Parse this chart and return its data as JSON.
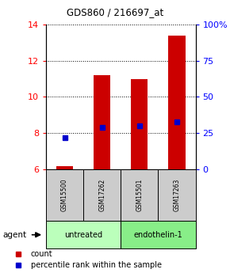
{
  "title": "GDS860 / 216697_at",
  "samples": [
    "GSM15500",
    "GSM17262",
    "GSM15501",
    "GSM17263"
  ],
  "bar_bottoms": [
    6.0,
    6.0,
    6.0,
    6.0
  ],
  "bar_tops": [
    6.15,
    11.2,
    11.0,
    13.4
  ],
  "percentile_values": [
    7.75,
    8.3,
    8.4,
    8.6
  ],
  "ylim_left": [
    6,
    14
  ],
  "ylim_right": [
    0,
    100
  ],
  "yticks_left": [
    6,
    8,
    10,
    12,
    14
  ],
  "yticks_right": [
    0,
    25,
    50,
    75,
    100
  ],
  "ytick_labels_right": [
    "0",
    "25",
    "50",
    "75",
    "100%"
  ],
  "bar_color": "#cc0000",
  "dot_color": "#0000cc",
  "sample_box_color": "#cccccc",
  "untreated_color": "#bbffbb",
  "endothelin_color": "#88ee88",
  "bar_width": 0.45,
  "legend_count_label": "count",
  "legend_pct_label": "percentile rank within the sample",
  "agent_label": "agent",
  "group_spans": [
    {
      "label": "untreated",
      "start": 0,
      "end": 2
    },
    {
      "label": "endothelin-1",
      "start": 2,
      "end": 4
    }
  ]
}
